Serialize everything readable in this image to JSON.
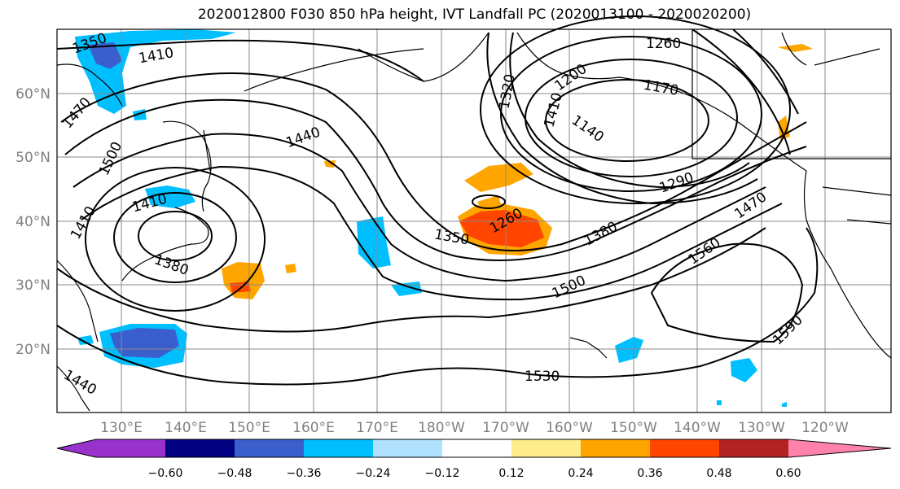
{
  "title": "2020012800 F030 850 hPa height, IVT Landfall PC (2020013100 - 2020020200)",
  "lat_labels": [
    "60°N",
    "50°N",
    "40°N",
    "30°N",
    "20°N"
  ],
  "lon_labels": [
    "130°E",
    "140°E",
    "150°E",
    "160°E",
    "170°E",
    "180°W",
    "170°W",
    "160°W",
    "150°W",
    "140°W",
    "130°W",
    "120°W"
  ],
  "contour_labels": [
    "1350",
    "1410",
    "1470",
    "1500",
    "1410",
    "1440",
    "1410",
    "1440",
    "1380",
    "1320",
    "1200",
    "1260",
    "1170",
    "1140",
    "1290",
    "1260",
    "1350",
    "1380",
    "1410",
    "1470",
    "1500",
    "1560",
    "1590",
    "1530",
    "1500"
  ],
  "colorbar": {
    "ticks": [
      "−0.60",
      "−0.48",
      "−0.36",
      "−0.24",
      "−0.12",
      "0.12",
      "0.24",
      "0.36",
      "0.48",
      "0.60"
    ],
    "colors": [
      "#9932cc",
      "#000080",
      "#3a5fcd",
      "#00bfff",
      "#b0e2ff",
      "#ffffff",
      "#ffec8b",
      "#ffa500",
      "#ff4500",
      "#b22222",
      "#ff82ab"
    ]
  }
}
